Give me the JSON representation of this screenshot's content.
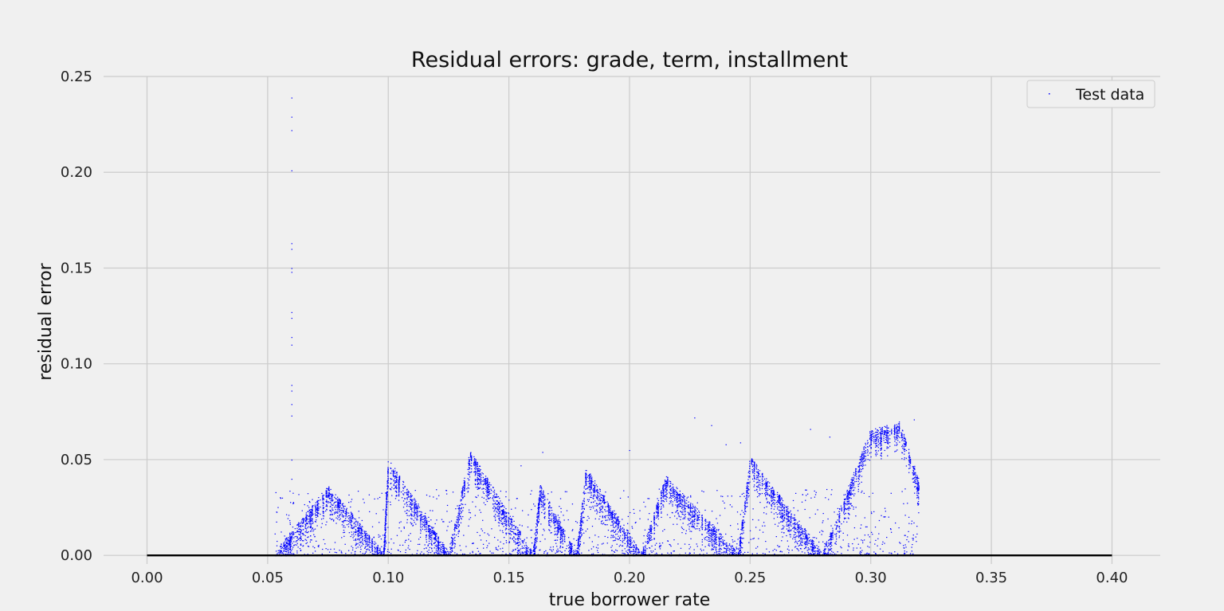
{
  "chart_data": {
    "type": "scatter",
    "title": "Residual errors: grade, term, installment",
    "xlabel": "true borrower rate",
    "ylabel": "residual error",
    "xlim": [
      -0.018,
      0.42
    ],
    "ylim": [
      -0.0045,
      0.25
    ],
    "xticks": [
      0.0,
      0.05,
      0.1,
      0.15,
      0.2,
      0.25,
      0.3,
      0.35,
      0.4
    ],
    "xtick_labels": [
      "0.00",
      "0.05",
      "0.10",
      "0.15",
      "0.20",
      "0.25",
      "0.30",
      "0.35",
      "0.40"
    ],
    "yticks": [
      0.0,
      0.05,
      0.1,
      0.15,
      0.2,
      0.25
    ],
    "ytick_labels": [
      "0.00",
      "0.05",
      "0.10",
      "0.15",
      "0.20",
      "0.25"
    ],
    "grid": true,
    "legend": {
      "position": "top-right",
      "entries": [
        "Test data"
      ]
    },
    "reference_line": {
      "y": 0.0,
      "x_range": [
        0.0,
        0.4
      ],
      "color": "#000000"
    },
    "series": [
      {
        "name": "Test data",
        "color": "#0000ff",
        "marker": "pixel",
        "description": "Dense pixel scatter of residuals; diagonal zig-zag bands between x 0.053 and 0.32",
        "band_vertices": [
          [
            0.053,
            0.0
          ],
          [
            0.075,
            0.035
          ],
          [
            0.098,
            0.0
          ],
          [
            0.1,
            0.049
          ],
          [
            0.125,
            0.0
          ],
          [
            0.134,
            0.053
          ],
          [
            0.16,
            0.0
          ],
          [
            0.163,
            0.035
          ],
          [
            0.178,
            0.0
          ],
          [
            0.182,
            0.044
          ],
          [
            0.205,
            0.0
          ],
          [
            0.215,
            0.04
          ],
          [
            0.245,
            0.0
          ],
          [
            0.25,
            0.05
          ],
          [
            0.28,
            0.0
          ],
          [
            0.3,
            0.064
          ],
          [
            0.312,
            0.068
          ],
          [
            0.32,
            0.038
          ]
        ],
        "outliers": [
          [
            0.06,
            0.239
          ],
          [
            0.06,
            0.229
          ],
          [
            0.06,
            0.222
          ],
          [
            0.06,
            0.201
          ],
          [
            0.06,
            0.163
          ],
          [
            0.06,
            0.16
          ],
          [
            0.06,
            0.15
          ],
          [
            0.06,
            0.148
          ],
          [
            0.06,
            0.127
          ],
          [
            0.06,
            0.124
          ],
          [
            0.06,
            0.114
          ],
          [
            0.06,
            0.11
          ],
          [
            0.06,
            0.089
          ],
          [
            0.06,
            0.086
          ],
          [
            0.06,
            0.079
          ],
          [
            0.06,
            0.073
          ],
          [
            0.06,
            0.05
          ],
          [
            0.06,
            0.04
          ],
          [
            0.227,
            0.072
          ],
          [
            0.234,
            0.068
          ],
          [
            0.24,
            0.058
          ],
          [
            0.246,
            0.059
          ],
          [
            0.275,
            0.066
          ],
          [
            0.283,
            0.062
          ],
          [
            0.318,
            0.071
          ],
          [
            0.164,
            0.054
          ],
          [
            0.155,
            0.047
          ],
          [
            0.2,
            0.055
          ]
        ]
      }
    ]
  }
}
